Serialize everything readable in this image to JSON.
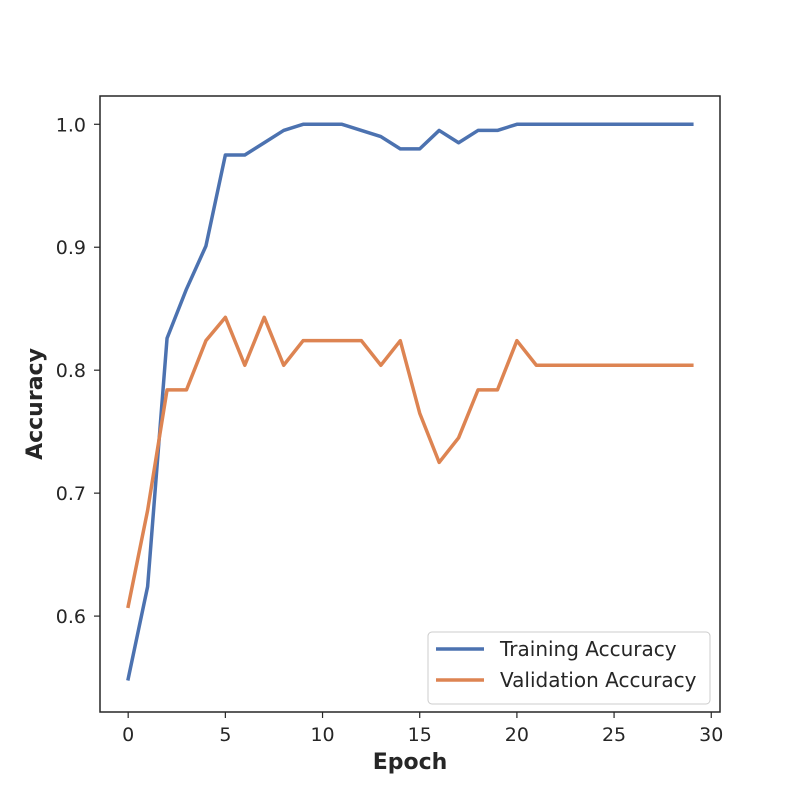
{
  "chart_data": {
    "type": "line",
    "title": "",
    "xlabel": "Epoch",
    "ylabel": "Accuracy",
    "xlim": [
      -1.45,
      30.45
    ],
    "ylim": [
      0.522,
      1.023
    ],
    "xticks": [
      0,
      5,
      10,
      15,
      20,
      25,
      30
    ],
    "yticks": [
      0.6,
      0.7,
      0.8,
      0.9,
      1.0
    ],
    "ytick_labels": [
      "0.6",
      "0.7",
      "0.8",
      "0.9",
      "1.0"
    ],
    "grid": false,
    "legend_position": "lower-right",
    "x": [
      0,
      1,
      2,
      3,
      4,
      5,
      6,
      7,
      8,
      9,
      10,
      11,
      12,
      13,
      14,
      15,
      16,
      17,
      18,
      19,
      20,
      21,
      22,
      23,
      24,
      25,
      26,
      27,
      28,
      29
    ],
    "series": [
      {
        "name": "Training Accuracy",
        "color": "#4C72B0",
        "values": [
          0.549,
          0.624,
          0.826,
          0.866,
          0.901,
          0.975,
          0.975,
          0.985,
          0.995,
          1.0,
          1.0,
          1.0,
          0.995,
          0.99,
          0.98,
          0.98,
          0.995,
          0.985,
          0.995,
          0.995,
          1.0,
          1.0,
          1.0,
          1.0,
          1.0,
          1.0,
          1.0,
          1.0,
          1.0,
          1.0
        ]
      },
      {
        "name": "Validation Accuracy",
        "color": "#DD8452",
        "values": [
          0.608,
          0.686,
          0.784,
          0.784,
          0.824,
          0.843,
          0.804,
          0.843,
          0.804,
          0.824,
          0.824,
          0.824,
          0.824,
          0.804,
          0.824,
          0.765,
          0.725,
          0.745,
          0.784,
          0.784,
          0.824,
          0.804,
          0.804,
          0.804,
          0.804,
          0.804,
          0.804,
          0.804,
          0.804,
          0.804
        ]
      }
    ]
  }
}
